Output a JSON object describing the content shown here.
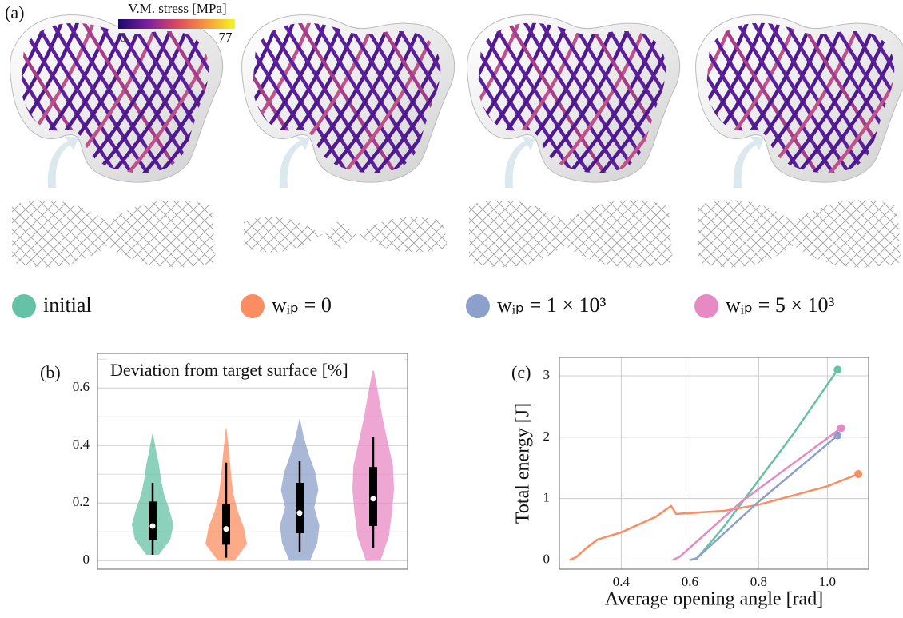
{
  "figure": {
    "panel_labels": [
      "(a)",
      "(b)",
      "(c)"
    ],
    "colorbar": {
      "title": "V.M. stress [MPa]",
      "min": 0,
      "max": 77,
      "colors": [
        "#1a0a6e",
        "#7b1fa2",
        "#d9485f",
        "#f89540",
        "#f0f921"
      ]
    }
  },
  "chart_data": [
    {
      "type": "violin",
      "title": "Deviation from target surface [%]",
      "ylim": [
        -0.03,
        0.72
      ],
      "yticks": [
        0,
        0.2,
        0.4,
        0.6
      ],
      "minor_yticks": [
        0.1,
        0.3,
        0.5,
        0.7
      ],
      "grid": true,
      "series": [
        {
          "name": "initial",
          "color": "#66c2a5",
          "min": 0.02,
          "max": 0.44,
          "shape": [
            0.3,
            0.85,
            1,
            0.8,
            0.55,
            0.4,
            0.3,
            0.15,
            0.02
          ],
          "whisker_low": 0.02,
          "q1": 0.07,
          "median": 0.12,
          "q3": 0.205,
          "whisker_high": 0.27
        },
        {
          "name": "wᵢₚ = 0",
          "color": "#fc8d62",
          "min": 0.0,
          "max": 0.46,
          "shape": [
            0.4,
            1,
            0.85,
            0.55,
            0.35,
            0.25,
            0.18,
            0.1,
            0.02
          ],
          "whisker_low": 0.01,
          "q1": 0.055,
          "median": 0.11,
          "q3": 0.195,
          "whisker_high": 0.34
        },
        {
          "name": "wᵢₚ = 1 × 10³",
          "color": "#8da0cb",
          "min": 0.0,
          "max": 0.49,
          "shape": [
            0.5,
            0.85,
            0.95,
            0.7,
            0.9,
            0.75,
            0.45,
            0.2,
            0.02
          ],
          "whisker_low": 0.03,
          "q1": 0.095,
          "median": 0.165,
          "q3": 0.27,
          "whisker_high": 0.345
        },
        {
          "name": "wᵢₚ = 5 × 10³",
          "color": "#e78ac3",
          "min": 0.0,
          "max": 0.66,
          "shape": [
            0.35,
            0.75,
            0.9,
            1,
            0.95,
            0.7,
            0.45,
            0.25,
            0.03
          ],
          "whisker_low": 0.045,
          "q1": 0.12,
          "median": 0.215,
          "q3": 0.325,
          "whisker_high": 0.43
        }
      ]
    },
    {
      "type": "line",
      "xlabel": "Average opening angle [rad]",
      "ylabel": "Total energy [J]",
      "xlim": [
        0.22,
        1.12
      ],
      "ylim": [
        -0.15,
        3.3
      ],
      "xticks": [
        0.4,
        0.6,
        0.8,
        {
          "value": 1,
          "label": "1.0"
        }
      ],
      "yticks": [
        0,
        1,
        2,
        3
      ],
      "grid": true,
      "end_markers": true,
      "series": [
        {
          "color": "#66c2a5",
          "x": [
            0.6,
            0.62,
            0.7,
            0.8,
            0.9,
            1.03
          ],
          "values": [
            0,
            0.02,
            0.55,
            1.3,
            2.05,
            3.1
          ]
        },
        {
          "color": "#fc8d62",
          "x": [
            0.25,
            0.27,
            0.3,
            0.33,
            0.4,
            0.5,
            0.545,
            0.56,
            0.7,
            0.8,
            0.9,
            1.0,
            1.09
          ],
          "values": [
            0,
            0.05,
            0.2,
            0.33,
            0.45,
            0.7,
            0.88,
            0.75,
            0.8,
            0.9,
            1.05,
            1.2,
            1.4
          ]
        },
        {
          "color": "#8da0cb",
          "x": [
            0.6,
            0.62,
            0.8,
            1.03
          ],
          "values": [
            0,
            0.03,
            0.95,
            2.03
          ]
        },
        {
          "color": "#e78ac3",
          "x": [
            0.55,
            0.57,
            0.75,
            1.04
          ],
          "values": [
            0,
            0.05,
            0.95,
            2.15
          ]
        }
      ]
    }
  ]
}
